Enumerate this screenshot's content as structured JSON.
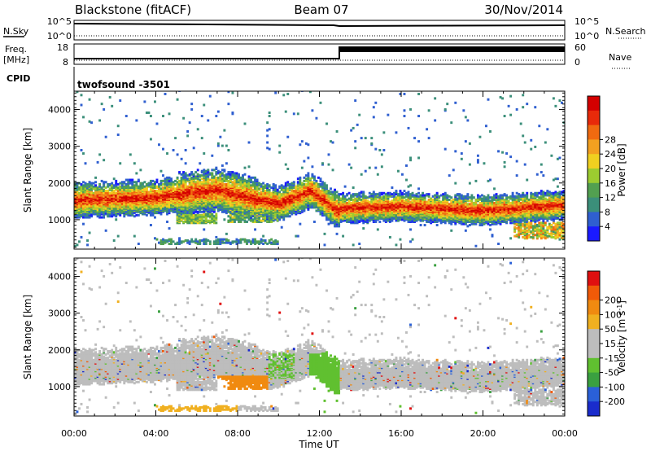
{
  "header": {
    "radar": "Blackstone (fitACF)",
    "beam": "Beam 07",
    "date": "30/Nov/2014"
  },
  "top_panels": {
    "nsky_label": "N.Sky",
    "nsearch_label": "N.Search",
    "freq_label_1": "Freq.",
    "freq_label_2": "[MHz]",
    "nave_label": "Nave",
    "cpid_label": "CPID",
    "cpid_value": "twofsound  -3501",
    "nsky_ticks": [
      "10^5",
      "10^0"
    ],
    "nsearch_ticks": [
      "10^5",
      "10^0"
    ],
    "freq_ticks": [
      "18",
      "8"
    ],
    "nave_ticks": [
      "60",
      "0"
    ]
  },
  "colors": {
    "power_scale": [
      "#1a1aff",
      "#2f5fd0",
      "#3b8f7a",
      "#52a050",
      "#9ccc30",
      "#f0d020",
      "#f3a020",
      "#f06a10",
      "#e82a0a",
      "#d40000"
    ],
    "velocity_scale": [
      "#1a2ccc",
      "#2a60d8",
      "#3aa040",
      "#60c030",
      "#bdbdbd",
      "#bdbdbd",
      "#f0b020",
      "#f08a10",
      "#f05a08",
      "#e01010"
    ]
  },
  "chart_data": [
    {
      "type": "heatmap",
      "title": "",
      "ylabel": "Slant Range [km]",
      "xlabel": "",
      "x_range_hours": [
        0,
        24
      ],
      "ylim": [
        200,
        4500
      ],
      "y_ticks": [
        1000,
        2000,
        3000,
        4000
      ],
      "colorbar": {
        "label": "Power [dB]",
        "ticks": [
          4,
          8,
          12,
          16,
          20,
          24,
          28
        ],
        "range": [
          0,
          30
        ]
      }
    },
    {
      "type": "heatmap",
      "title": "",
      "ylabel": "Slant Range [km]",
      "xlabel": "Time UT",
      "x_range_hours": [
        0,
        24
      ],
      "x_tick_labels": [
        "00:00",
        "04:00",
        "08:00",
        "12:00",
        "16:00",
        "20:00",
        "00:00"
      ],
      "ylim": [
        200,
        4500
      ],
      "y_ticks": [
        1000,
        2000,
        3000,
        4000
      ],
      "colorbar": {
        "label": "Velocity [m s^-1]",
        "ticks": [
          "200",
          "100",
          "50",
          "15",
          "-15",
          "-50",
          "-100",
          "-200"
        ]
      }
    }
  ]
}
